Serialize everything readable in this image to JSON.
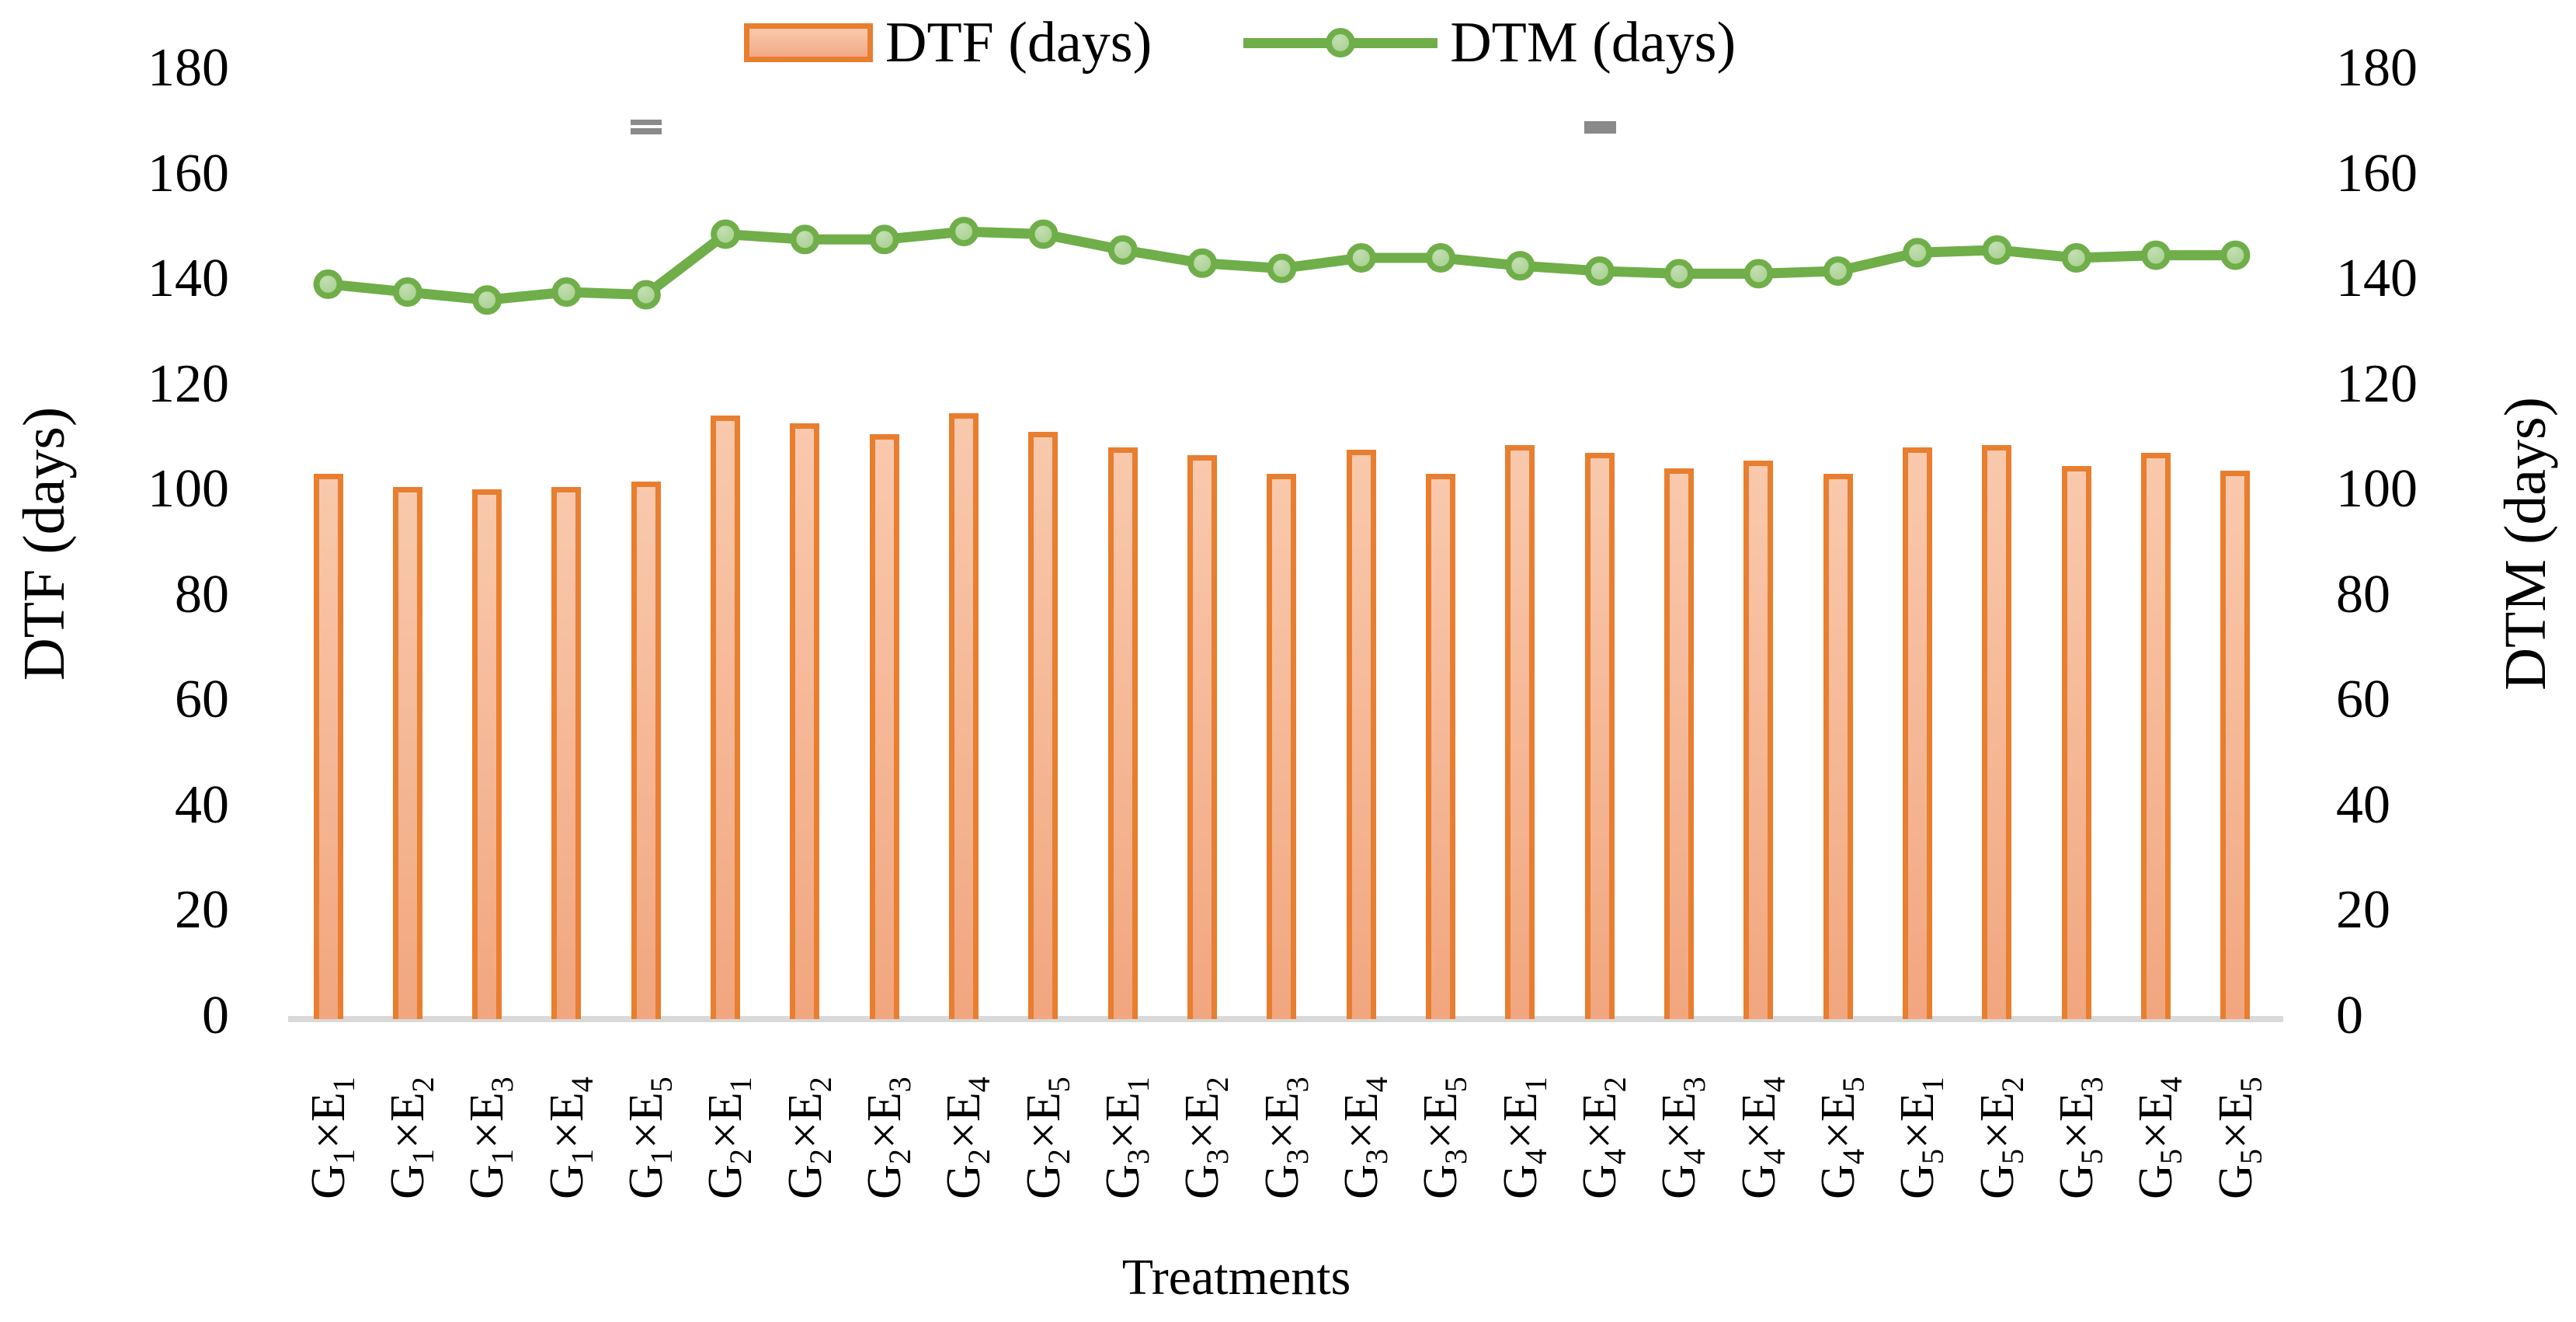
{
  "legend": {
    "dtf_label": "DTF (days)",
    "dtm_label": "DTM (days)"
  },
  "axes": {
    "left_title": "DTF (days)",
    "right_title": "DTM (days)",
    "x_title": "Treatments",
    "tick_values": [
      0,
      20,
      40,
      60,
      80,
      100,
      120,
      140,
      160,
      180
    ],
    "y_min": 0,
    "y_max": 180
  },
  "colors": {
    "bar_border": "#E87E2F",
    "bar_fill_top": "#F9C9AD",
    "bar_fill_bottom": "#F1A67F",
    "line_green": "#6FAE49",
    "marker_fill": "#A6CE8C",
    "marker_fill_light": "#C3DFB2",
    "axis_line_grey": "#D9D9D9",
    "artifact_grey": "#8A8A8A",
    "text": "#000000"
  },
  "chart_data": {
    "type": "bar+line",
    "title": "",
    "xlabel": "Treatments",
    "ylabel_left": "DTF (days)",
    "ylabel_right": "DTM (days)",
    "ylim_left": [
      0,
      180
    ],
    "ylim_right": [
      0,
      180
    ],
    "grid": false,
    "legend_position": "top-center",
    "categories": [
      "G1×E1",
      "G1×E2",
      "G1×E3",
      "G1×E4",
      "G1×E5",
      "G2×E1",
      "G2×E2",
      "G2×E3",
      "G2×E4",
      "G2×E5",
      "G3×E1",
      "G3×E2",
      "G3×E3",
      "G3×E4",
      "G3×E5",
      "G4×E1",
      "G4×E2",
      "G4×E3",
      "G4×E4",
      "G4×E5",
      "G5×E1",
      "G5×E2",
      "G5×E3",
      "G5×E4",
      "G5×E5"
    ],
    "series": [
      {
        "name": "DTF (days)",
        "type": "bar",
        "axis": "left",
        "values": [
          103,
          100.5,
          100,
          100.5,
          101.5,
          114,
          112.5,
          110.5,
          114.5,
          111,
          108,
          106.5,
          103,
          107.5,
          103,
          108.5,
          107,
          104,
          105.5,
          103,
          108,
          108.5,
          104.5,
          107,
          103.5
        ]
      },
      {
        "name": "DTM (days)",
        "type": "line",
        "axis": "right",
        "values": [
          139,
          137.5,
          136,
          137.5,
          137,
          148.5,
          147.5,
          147.5,
          149,
          148.5,
          145.5,
          143,
          142,
          144,
          144,
          142.5,
          141.5,
          141,
          141,
          141.5,
          145,
          145.5,
          144,
          144.5,
          144.5
        ]
      }
    ],
    "annotations": [
      {
        "shape": "double-dash",
        "over_category": "G1×E5",
        "y_value": 170
      },
      {
        "shape": "dash",
        "over_category": "G4×E2",
        "y_value": 170
      }
    ]
  }
}
